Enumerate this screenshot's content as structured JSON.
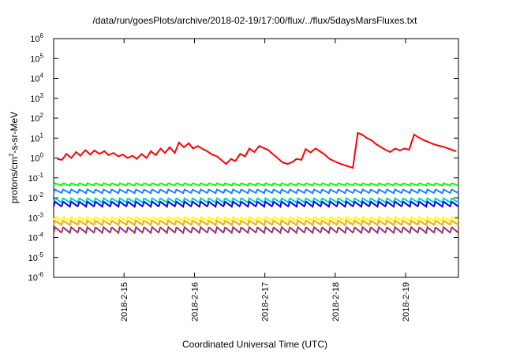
{
  "chart_data": {
    "type": "line",
    "title": "/data/run/goesPlots/archive/2018-02-19/17:00/flux/../flux/5daysMarsFluxes.txt",
    "xlabel": "Coordinated Universal Time (UTC)",
    "ylabel": {
      "prefix": "protons/cm",
      "sup": "2",
      "suffix": "-s-sr-MeV"
    },
    "y_scale": "log",
    "ylim": [
      1e-06,
      1000000.0
    ],
    "y_ticks": [
      {
        "exp": "-6",
        "value": 1e-06
      },
      {
        "exp": "-5",
        "value": 1e-05
      },
      {
        "exp": "-4",
        "value": 0.0001
      },
      {
        "exp": "-3",
        "value": 0.001
      },
      {
        "exp": "-2",
        "value": 0.01
      },
      {
        "exp": "-1",
        "value": 0.1
      },
      {
        "exp": "0",
        "value": 1
      },
      {
        "exp": "1",
        "value": 10
      },
      {
        "exp": "2",
        "value": 100
      },
      {
        "exp": "3",
        "value": 1000
      },
      {
        "exp": "4",
        "value": 10000
      },
      {
        "exp": "5",
        "value": 100000
      },
      {
        "exp": "6",
        "value": 1000000
      }
    ],
    "y_tick_base": "10",
    "xlim_days": [
      14,
      19.75
    ],
    "x_ticks": [
      {
        "label": "2018-2-15",
        "day": 15
      },
      {
        "label": "2018-2-16",
        "day": 16
      },
      {
        "label": "2018-2-17",
        "day": 17
      },
      {
        "label": "2018-2-18",
        "day": 18
      },
      {
        "label": "2018-2-19",
        "day": 19
      }
    ],
    "grid": false,
    "legend": "none",
    "series": [
      {
        "color": "#ff0000",
        "x": [
          14.05,
          14.12,
          14.18,
          14.25,
          14.32,
          14.38,
          14.45,
          14.52,
          14.58,
          14.65,
          14.72,
          14.78,
          14.85,
          14.92,
          14.98,
          15.05,
          15.12,
          15.18,
          15.25,
          15.32,
          15.38,
          15.45,
          15.52,
          15.58,
          15.65,
          15.72,
          15.78,
          15.85,
          15.92,
          15.98,
          16.05,
          16.12,
          16.18,
          16.25,
          16.32,
          16.38,
          16.45,
          16.52,
          16.58,
          16.65,
          16.72,
          16.78,
          16.85,
          16.92,
          16.98,
          17.05,
          17.12,
          17.18,
          17.25,
          17.32,
          17.38,
          17.45,
          17.52,
          17.58,
          17.65,
          17.72,
          17.78,
          17.85,
          17.92,
          17.98,
          18.05,
          18.12,
          18.18,
          18.25,
          18.32,
          18.38,
          18.45,
          18.52,
          18.58,
          18.65,
          18.72,
          18.78,
          18.85,
          18.92,
          18.98,
          19.05,
          19.12,
          19.18,
          19.25,
          19.32,
          19.38,
          19.45,
          19.52,
          19.58,
          19.65,
          19.72
        ],
        "values": [
          0.9,
          0.8,
          1.6,
          1.0,
          2.0,
          1.3,
          2.5,
          1.5,
          2.4,
          1.6,
          2.2,
          1.4,
          1.8,
          1.2,
          1.5,
          1.0,
          1.3,
          0.9,
          1.6,
          1.0,
          2.2,
          1.4,
          3.0,
          1.8,
          3.5,
          1.8,
          6.0,
          3.5,
          5.5,
          3.0,
          4.0,
          2.8,
          2.2,
          1.5,
          1.2,
          0.8,
          0.5,
          0.9,
          0.7,
          1.6,
          1.2,
          3.0,
          2.0,
          4.0,
          3.2,
          2.5,
          1.5,
          1.0,
          0.6,
          0.5,
          0.6,
          0.9,
          0.8,
          2.8,
          1.9,
          3.0,
          2.2,
          1.5,
          0.9,
          0.7,
          0.55,
          0.45,
          0.38,
          0.32,
          18.0,
          15.0,
          10.0,
          7.5,
          5.0,
          3.5,
          2.5,
          2.0,
          3.0,
          2.4,
          3.0,
          2.6,
          15.0,
          11.0,
          8.0,
          6.5,
          5.2,
          4.3,
          3.8,
          3.2,
          2.6,
          2.2
        ]
      },
      {
        "color": "#00ff00",
        "baseline": 0.03,
        "amp": 1.8,
        "period": 0.115
      },
      {
        "color": "#2080ff",
        "baseline": 0.012,
        "amp": 2.2,
        "period": 0.115
      },
      {
        "color": "#00d0c0",
        "baseline": 0.004,
        "amp": 2.4,
        "period": 0.115
      },
      {
        "color": "#0000ff",
        "baseline": 0.0025,
        "amp": 2.6,
        "period": 0.115
      },
      {
        "color": "#ffff00",
        "baseline": 0.0005,
        "amp": 2.2,
        "period": 0.115
      },
      {
        "color": "#ffa500",
        "baseline": 0.0003,
        "amp": 2.4,
        "period": 0.115
      },
      {
        "color": "#a0306a",
        "baseline": 0.00012,
        "amp": 2.8,
        "period": 0.115
      }
    ]
  }
}
